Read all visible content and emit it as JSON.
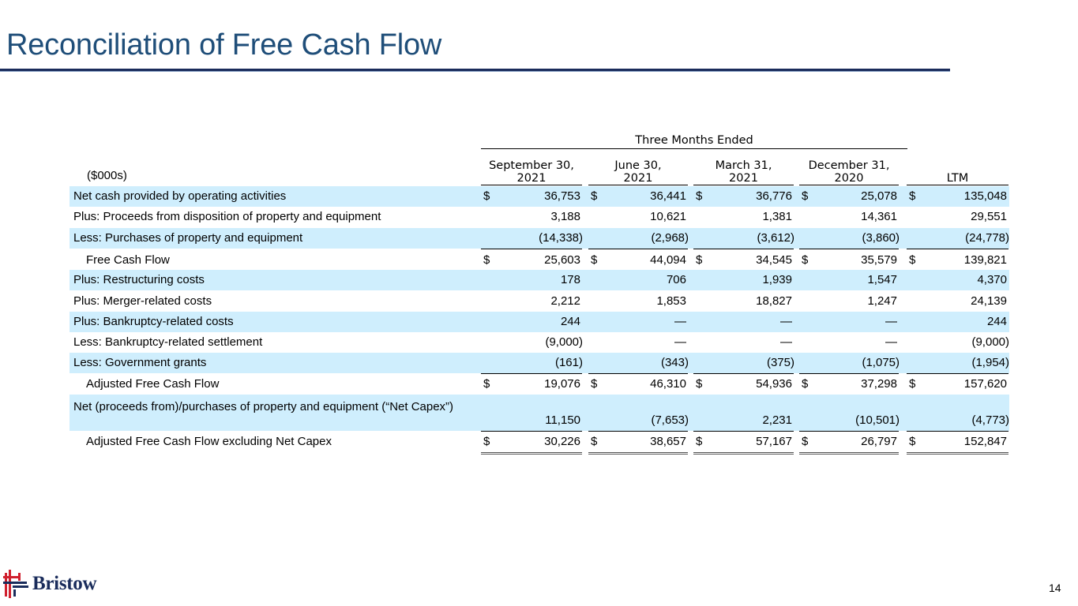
{
  "page": {
    "title": "Reconciliation of Free Cash Flow",
    "page_number": "14",
    "logo_text": "Bristow"
  },
  "table": {
    "group_header": "Three Months Ended",
    "units": "($000s)",
    "columns": [
      {
        "line1": "September 30,",
        "line2": "2021"
      },
      {
        "line1": "June 30,",
        "line2": "2021"
      },
      {
        "line1": "March 31,",
        "line2": "2021"
      },
      {
        "line1": "December 31,",
        "line2": "2020"
      },
      {
        "line1": "",
        "line2": "LTM"
      }
    ],
    "currency": "$",
    "rows": [
      {
        "label": "Net cash provided by operating activities",
        "values": [
          "36,753",
          "36,441",
          "36,776",
          "25,078",
          "135,048"
        ]
      },
      {
        "label": "Plus: Proceeds from disposition of property and equipment",
        "values": [
          "3,188",
          "10,621",
          "1,381",
          "14,361",
          "29,551"
        ]
      },
      {
        "label": "Less: Purchases of property and equipment",
        "values": [
          "(14,338)",
          "(2,968)",
          "(3,612)",
          "(3,860)",
          "(24,778)"
        ]
      },
      {
        "label": "Free Cash Flow",
        "values": [
          "25,603",
          "44,094",
          "34,545",
          "35,579",
          "139,821"
        ]
      },
      {
        "label": "Plus: Restructuring costs",
        "values": [
          "178",
          "706",
          "1,939",
          "1,547",
          "4,370"
        ]
      },
      {
        "label": "Plus: Merger-related costs",
        "values": [
          "2,212",
          "1,853",
          "18,827",
          "1,247",
          "24,139"
        ]
      },
      {
        "label": "Plus: Bankruptcy-related costs",
        "values": [
          "244",
          "—",
          "—",
          "—",
          "244"
        ]
      },
      {
        "label": "Less: Bankruptcy-related settlement",
        "values": [
          "(9,000)",
          "—",
          "—",
          "—",
          "(9,000)"
        ]
      },
      {
        "label": "Less: Government grants",
        "values": [
          "(161)",
          "(343)",
          "(375)",
          "(1,075)",
          "(1,954)"
        ]
      },
      {
        "label": "Adjusted Free Cash Flow",
        "values": [
          "19,076",
          "46,310",
          "54,936",
          "37,298",
          "157,620"
        ]
      },
      {
        "label": "Net (proceeds from)/purchases of property and equipment (“Net Capex”)",
        "values": [
          "11,150",
          "(7,653)",
          "2,231",
          "(10,501)",
          "(4,773)"
        ]
      },
      {
        "label": "Adjusted Free Cash Flow excluding Net Capex",
        "values": [
          "30,226",
          "38,657",
          "57,167",
          "26,797",
          "152,847"
        ]
      }
    ]
  },
  "colors": {
    "title": "#1f4e79",
    "rule": "#1a2c5b",
    "row_shade": "#cfeefd",
    "logo_red": "#d0202e",
    "logo_navy": "#1a2c5b"
  }
}
